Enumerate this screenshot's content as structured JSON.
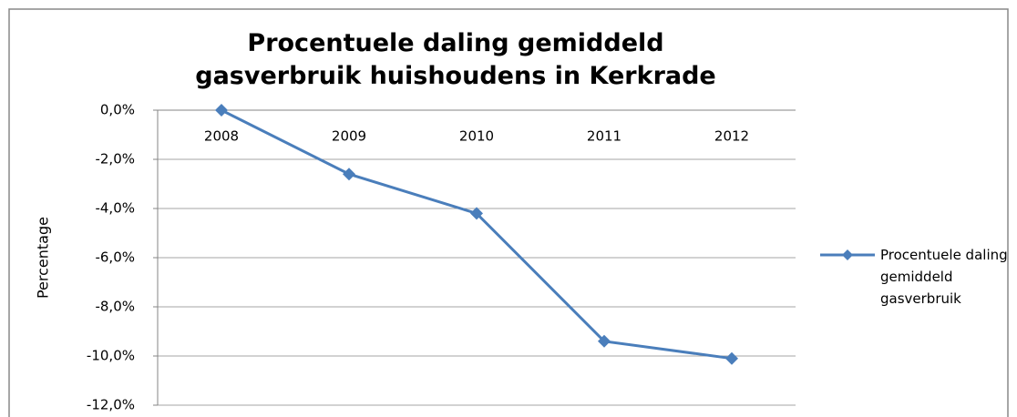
{
  "chart_data": {
    "type": "line",
    "title": "Procentuele daling gemiddeld gasverbruik huishoudens in Kerkrade",
    "ylabel": "Percentage",
    "categories": [
      "2008",
      "2009",
      "2010",
      "2011",
      "2012"
    ],
    "series": [
      {
        "name": "Procentuele daling gemiddeld gasverbruik",
        "color": "#4a7ebb",
        "values": [
          0,
          -2.6,
          -4.2,
          -9.4,
          -10.1
        ]
      }
    ],
    "ylim": [
      -12,
      0
    ],
    "yticks": [
      {
        "value": 0,
        "label": "0,0%"
      },
      {
        "value": -2,
        "label": "-2,0%"
      },
      {
        "value": -4,
        "label": "-4,0%"
      },
      {
        "value": -6,
        "label": "-6,0%"
      },
      {
        "value": -8,
        "label": "-8,0%"
      },
      {
        "value": -10,
        "label": "-10,0%"
      },
      {
        "value": -12,
        "label": "-12,0%"
      }
    ],
    "grid": true,
    "legend": "right"
  }
}
